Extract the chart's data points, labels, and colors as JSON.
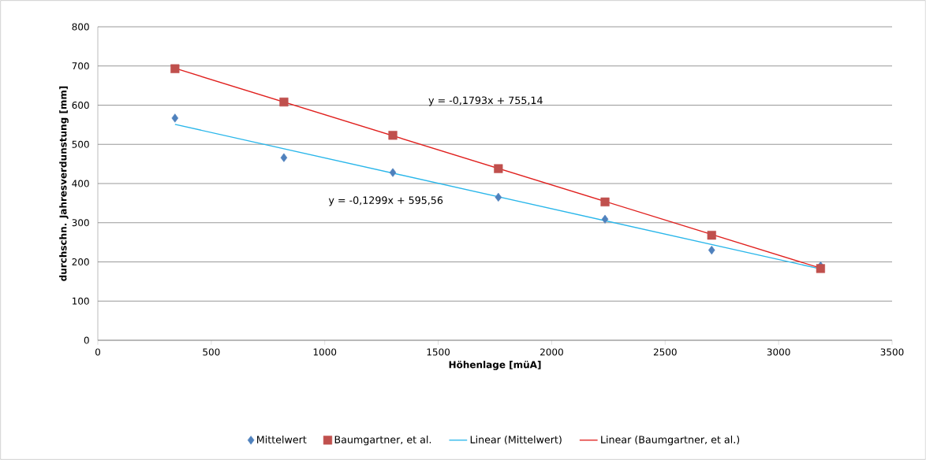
{
  "chart_data": {
    "type": "scatter",
    "xlabel": "Höhenlage [müA]",
    "ylabel": "durchschn. Jahresverdunstung [mm]",
    "xlim": [
      0,
      3500
    ],
    "xticks": [
      0,
      500,
      1000,
      1500,
      2000,
      2500,
      3000,
      3500
    ],
    "ylim": [
      0,
      800
    ],
    "yticks": [
      0,
      100,
      200,
      300,
      400,
      500,
      600,
      700,
      800
    ],
    "grid": "y",
    "legend": "bottom",
    "annotations": [
      "y = -0,1793x + 755,14",
      "y = -0,1299x + 595,56"
    ],
    "series": [
      {
        "name": "Mittelwert",
        "marker": "diamond",
        "color": "#4f81bd",
        "x": [
          340,
          820,
          1300,
          1765,
          2235,
          2705,
          3185
        ],
        "values": [
          567,
          466,
          428,
          365,
          309,
          230,
          190
        ]
      },
      {
        "name": "Baumgartner, et al.",
        "marker": "square",
        "color": "#c0504d",
        "x": [
          340,
          820,
          1300,
          1765,
          2235,
          2705,
          3185
        ],
        "values": [
          693,
          608,
          523,
          438,
          353,
          268,
          183
        ]
      },
      {
        "name": "Linear (Mittelwert)",
        "type": "line",
        "marker": "none",
        "color": "#29b6ea",
        "x": [
          340,
          3185
        ],
        "values": [
          551,
          182
        ]
      },
      {
        "name": "Linear (Baumgartner, et al.)",
        "type": "line",
        "marker": "none",
        "color": "#e0201e",
        "x": [
          340,
          3185
        ],
        "values": [
          694,
          184
        ]
      }
    ]
  }
}
